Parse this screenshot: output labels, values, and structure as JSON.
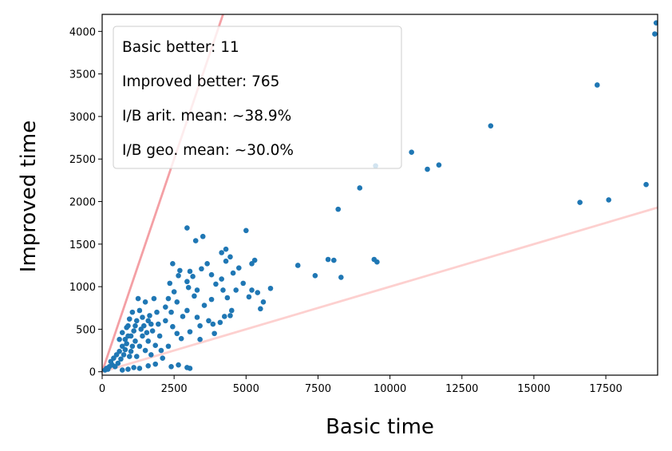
{
  "chart_data": {
    "type": "scatter",
    "xlabel": "Basic time",
    "ylabel": "Improved time",
    "xlim": [
      0,
      19300
    ],
    "ylim": [
      -40,
      4200
    ],
    "xticks": [
      0,
      2500,
      5000,
      7500,
      10000,
      12500,
      15000,
      17500
    ],
    "yticks": [
      0,
      500,
      1000,
      1500,
      2000,
      2500,
      3000,
      3500,
      4000
    ],
    "grid": false,
    "annotation_box": {
      "placement": "top-left",
      "lines": [
        "Basic better: 11",
        "Improved better: 765",
        "I/B arit. mean: ~38.9%",
        "I/B geo. mean: ~30.0%"
      ]
    },
    "reference_lines": [
      {
        "slope": 1.0,
        "color": "#f4a0a5"
      },
      {
        "slope": 0.1,
        "color": "#fdd0cf"
      }
    ],
    "colors": {
      "points": "#1f77b4"
    },
    "points": [
      [
        19250,
        4100
      ],
      [
        19200,
        3970
      ],
      [
        17200,
        3370
      ],
      [
        13500,
        2890
      ],
      [
        10750,
        2580
      ],
      [
        11300,
        2380
      ],
      [
        11700,
        2430
      ],
      [
        9500,
        2420
      ],
      [
        8950,
        2160
      ],
      [
        8200,
        1910
      ],
      [
        18900,
        2200
      ],
      [
        17600,
        2020
      ],
      [
        16600,
        1990
      ],
      [
        9450,
        1320
      ],
      [
        9550,
        1290
      ],
      [
        7850,
        1320
      ],
      [
        8050,
        1310
      ],
      [
        8300,
        1110
      ],
      [
        6800,
        1250
      ],
      [
        7400,
        1130
      ],
      [
        5000,
        1660
      ],
      [
        5300,
        1310
      ],
      [
        5200,
        1270
      ],
      [
        5850,
        980
      ],
      [
        5400,
        930
      ],
      [
        5100,
        880
      ],
      [
        5600,
        820
      ],
      [
        4900,
        1040
      ],
      [
        5200,
        960
      ],
      [
        5500,
        740
      ],
      [
        4300,
        1440
      ],
      [
        4150,
        1400
      ],
      [
        4450,
        1350
      ],
      [
        4300,
        1300
      ],
      [
        4550,
        1160
      ],
      [
        4650,
        960
      ],
      [
        4350,
        870
      ],
      [
        4450,
        660
      ],
      [
        4250,
        650
      ],
      [
        4500,
        720
      ],
      [
        4750,
        1220
      ],
      [
        4150,
        1090
      ],
      [
        4200,
        960
      ],
      [
        2950,
        1690
      ],
      [
        3500,
        1590
      ],
      [
        3250,
        1540
      ],
      [
        3650,
        1270
      ],
      [
        3450,
        1210
      ],
      [
        3050,
        1180
      ],
      [
        3150,
        1120
      ],
      [
        2950,
        1060
      ],
      [
        3000,
        990
      ],
      [
        3300,
        960
      ],
      [
        3800,
        1140
      ],
      [
        3950,
        1030
      ],
      [
        3200,
        890
      ],
      [
        3800,
        850
      ],
      [
        2650,
        1130
      ],
      [
        2450,
        1270
      ],
      [
        2700,
        1190
      ],
      [
        2350,
        1040
      ],
      [
        2500,
        940
      ],
      [
        2300,
        860
      ],
      [
        2600,
        820
      ],
      [
        2200,
        760
      ],
      [
        2400,
        700
      ],
      [
        3550,
        780
      ],
      [
        3700,
        600
      ],
      [
        3400,
        540
      ],
      [
        3050,
        470
      ],
      [
        2950,
        720
      ],
      [
        2800,
        650
      ],
      [
        3300,
        640
      ],
      [
        3850,
        560
      ],
      [
        4100,
        580
      ],
      [
        2200,
        600
      ],
      [
        2600,
        450
      ],
      [
        2450,
        530
      ],
      [
        2750,
        390
      ],
      [
        3400,
        380
      ],
      [
        3900,
        450
      ],
      [
        2300,
        300
      ],
      [
        2050,
        250
      ],
      [
        2400,
        60
      ],
      [
        2650,
        80
      ],
      [
        2950,
        50
      ],
      [
        3050,
        40
      ],
      [
        1850,
        90
      ],
      [
        1600,
        70
      ],
      [
        1300,
        40
      ],
      [
        1100,
        50
      ],
      [
        900,
        30
      ],
      [
        700,
        20
      ],
      [
        1500,
        820
      ],
      [
        1800,
        860
      ],
      [
        1300,
        720
      ],
      [
        1650,
        660
      ],
      [
        1900,
        700
      ],
      [
        1200,
        600
      ],
      [
        1450,
        540
      ],
      [
        1750,
        480
      ],
      [
        2000,
        420
      ],
      [
        1100,
        480
      ],
      [
        1400,
        420
      ],
      [
        1600,
        360
      ],
      [
        1850,
        310
      ],
      [
        1950,
        560
      ],
      [
        1300,
        300
      ],
      [
        1150,
        360
      ],
      [
        1000,
        240
      ],
      [
        1500,
        250
      ],
      [
        1700,
        200
      ],
      [
        2100,
        160
      ],
      [
        900,
        420
      ],
      [
        1050,
        300
      ],
      [
        800,
        260
      ],
      [
        1200,
        180
      ],
      [
        950,
        180
      ],
      [
        700,
        300
      ],
      [
        600,
        240
      ],
      [
        850,
        330
      ],
      [
        750,
        200
      ],
      [
        500,
        200
      ],
      [
        650,
        150
      ],
      [
        400,
        160
      ],
      [
        550,
        100
      ],
      [
        300,
        120
      ],
      [
        450,
        60
      ],
      [
        350,
        80
      ],
      [
        250,
        60
      ],
      [
        200,
        30
      ],
      [
        150,
        40
      ],
      [
        100,
        20
      ],
      [
        1250,
        860
      ],
      [
        1050,
        700
      ],
      [
        950,
        620
      ],
      [
        1400,
        640
      ],
      [
        1150,
        540
      ],
      [
        850,
        520
      ],
      [
        700,
        460
      ],
      [
        1000,
        420
      ],
      [
        600,
        380
      ],
      [
        800,
        380
      ],
      [
        1350,
        500
      ],
      [
        1550,
        460
      ],
      [
        900,
        540
      ],
      [
        1700,
        560
      ],
      [
        1600,
        600
      ]
    ]
  }
}
